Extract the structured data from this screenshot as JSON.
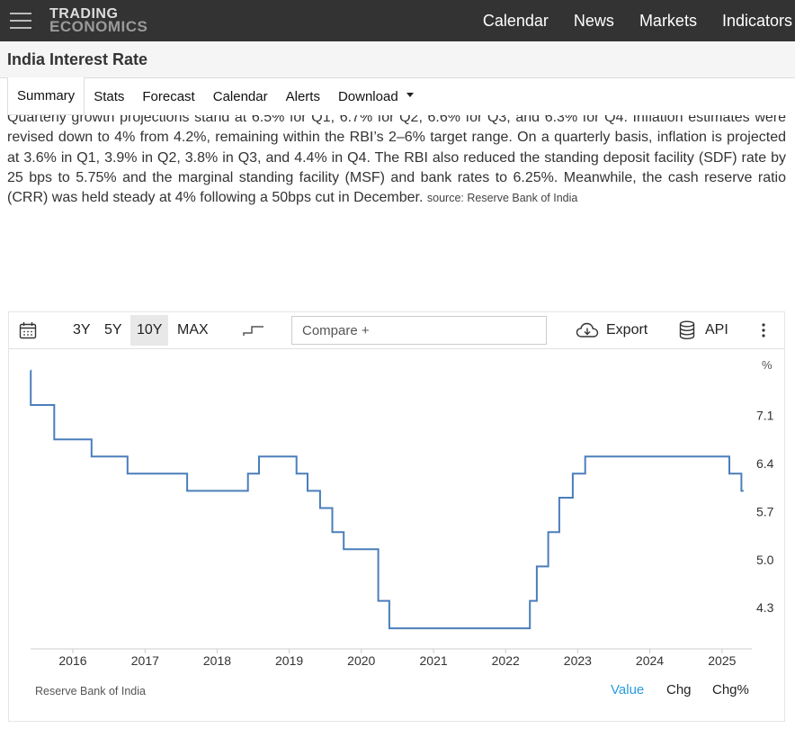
{
  "header": {
    "logo_line1": "TRADING",
    "logo_line2": "ECONOMICS",
    "nav": [
      "Calendar",
      "News",
      "Markets",
      "Indicators"
    ]
  },
  "page_title": "India Interest Rate",
  "tabs": [
    "Summary",
    "Stats",
    "Forecast",
    "Calendar",
    "Alerts",
    "Download"
  ],
  "summary": {
    "text": "Quarterly growth projections stand at 6.5% for Q1, 6.7% for Q2, 6.6% for Q3, and 6.3% for Q4. Inflation estimates were revised down to 4% from 4.2%, remaining within the RBI’s 2–6% target range. On a quarterly basis, inflation is projected at 3.6% in Q1, 3.9% in Q2, 3.8% in Q3, and 4.4% in Q4. The RBI also reduced the standing deposit facility (SDF) rate by 25 bps to 5.75% and the marginal standing facility (MSF) and bank rates to 6.25%. Meanwhile, the cash reserve ratio (CRR) was held steady at 4% following a 50bps cut in December.",
    "source": "source: Reserve Bank of India"
  },
  "chart_toolbar": {
    "ranges": [
      "3Y",
      "5Y",
      "10Y",
      "MAX"
    ],
    "selected_range": "10Y",
    "compare_placeholder": "Compare +",
    "export_label": "Export",
    "api_label": "API"
  },
  "chart_footer": {
    "source": "Reserve Bank of India",
    "modes": [
      "Value",
      "Chg",
      "Chg%"
    ],
    "active_mode": "Value"
  },
  "colors": {
    "line": "#4a7ebb",
    "active_mode": "#2a9ce0",
    "topbar": "#333333"
  },
  "chart_data": {
    "type": "line",
    "step": true,
    "unit_label": "%",
    "x_ticks": [
      "2016",
      "2017",
      "2018",
      "2019",
      "2020",
      "2021",
      "2022",
      "2023",
      "2024",
      "2025"
    ],
    "y_ticks": [
      7.1,
      6.4,
      5.7,
      5.0,
      4.3
    ],
    "ylim": [
      3.7,
      7.8
    ],
    "xlim": [
      "2015-06-01",
      "2025-06-01"
    ],
    "grid": false,
    "series": [
      {
        "x": [
          "2015-06-01",
          "2015-06-02",
          "2015-09-29",
          "2016-04-05",
          "2016-10-04",
          "2017-08-02",
          "2018-06-06",
          "2018-08-01",
          "2019-02-07",
          "2019-04-04",
          "2019-06-06",
          "2019-08-07",
          "2019-10-04",
          "2020-03-27",
          "2020-05-22",
          "2022-05-04",
          "2022-06-08",
          "2022-08-05",
          "2022-09-30",
          "2022-12-07",
          "2023-02-08",
          "2025-02-07",
          "2025-04-09"
        ],
        "values": [
          7.75,
          7.25,
          6.75,
          6.5,
          6.25,
          6.0,
          6.25,
          6.5,
          6.25,
          6.0,
          5.75,
          5.4,
          5.15,
          4.4,
          4.0,
          4.4,
          4.9,
          5.4,
          5.9,
          6.25,
          6.5,
          6.25,
          6.0
        ]
      }
    ]
  }
}
